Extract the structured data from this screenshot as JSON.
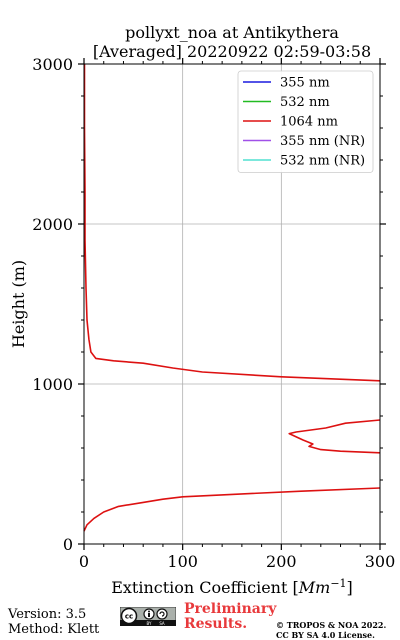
{
  "chart_data": {
    "type": "line",
    "title": "pollyxt_noa at Antikythera",
    "subtitle": "[Averaged] 20220922 02:59-03:58",
    "xlabel_prefix": "Extinction Coefficient ",
    "xlabel_unit": "Mm",
    "xlabel_exp": "−1",
    "ylabel": "Height (m)",
    "xlim": [
      0,
      300
    ],
    "ylim": [
      0,
      3000
    ],
    "xticks": [
      0,
      100,
      200,
      300
    ],
    "yticks": [
      0,
      1000,
      2000,
      3000
    ],
    "grid": true,
    "legend_position": "top-right",
    "legend": [
      {
        "name": "355 nm",
        "color": "#1a1adf"
      },
      {
        "name": "532 nm",
        "color": "#22bb22"
      },
      {
        "name": "1064 nm",
        "color": "#dd1111"
      },
      {
        "name": "355 nm (NR)",
        "color": "#a050e8"
      },
      {
        "name": "532 nm (NR)",
        "color": "#50e0d0"
      }
    ],
    "series": [
      {
        "name": "1064 nm",
        "color": "#dd1111",
        "points": [
          [
            0,
            80
          ],
          [
            3,
            120
          ],
          [
            10,
            160
          ],
          [
            20,
            200
          ],
          [
            35,
            235
          ],
          [
            60,
            260
          ],
          [
            80,
            280
          ],
          [
            100,
            295
          ],
          [
            150,
            310
          ],
          [
            220,
            330
          ],
          [
            300,
            350
          ]
        ],
        "points2": [
          [
            300,
            570
          ],
          [
            260,
            580
          ],
          [
            240,
            590
          ],
          [
            228,
            610
          ],
          [
            232,
            625
          ],
          [
            222,
            650
          ],
          [
            208,
            690
          ],
          [
            215,
            700
          ],
          [
            245,
            725
          ],
          [
            265,
            755
          ],
          [
            300,
            775
          ]
        ],
        "points3": [
          [
            300,
            1020
          ],
          [
            200,
            1045
          ],
          [
            120,
            1075
          ],
          [
            90,
            1100
          ],
          [
            60,
            1130
          ],
          [
            30,
            1145
          ],
          [
            12,
            1160
          ],
          [
            7,
            1200
          ],
          [
            5,
            1280
          ],
          [
            3,
            1400
          ],
          [
            2,
            1600
          ],
          [
            1,
            1900
          ],
          [
            1,
            2200
          ],
          [
            0.5,
            2600
          ],
          [
            0.5,
            3000
          ]
        ]
      }
    ]
  },
  "footer": {
    "version": "Version: 3.5",
    "method": "Method: Klett",
    "license_badge": "cc-by-sa-icon",
    "preliminary_line1": "Preliminary",
    "preliminary_line2": "Results.",
    "copyright_line1": "© TROPOS & NOA 2022.",
    "copyright_line2": "CC BY SA 4.0 License."
  }
}
